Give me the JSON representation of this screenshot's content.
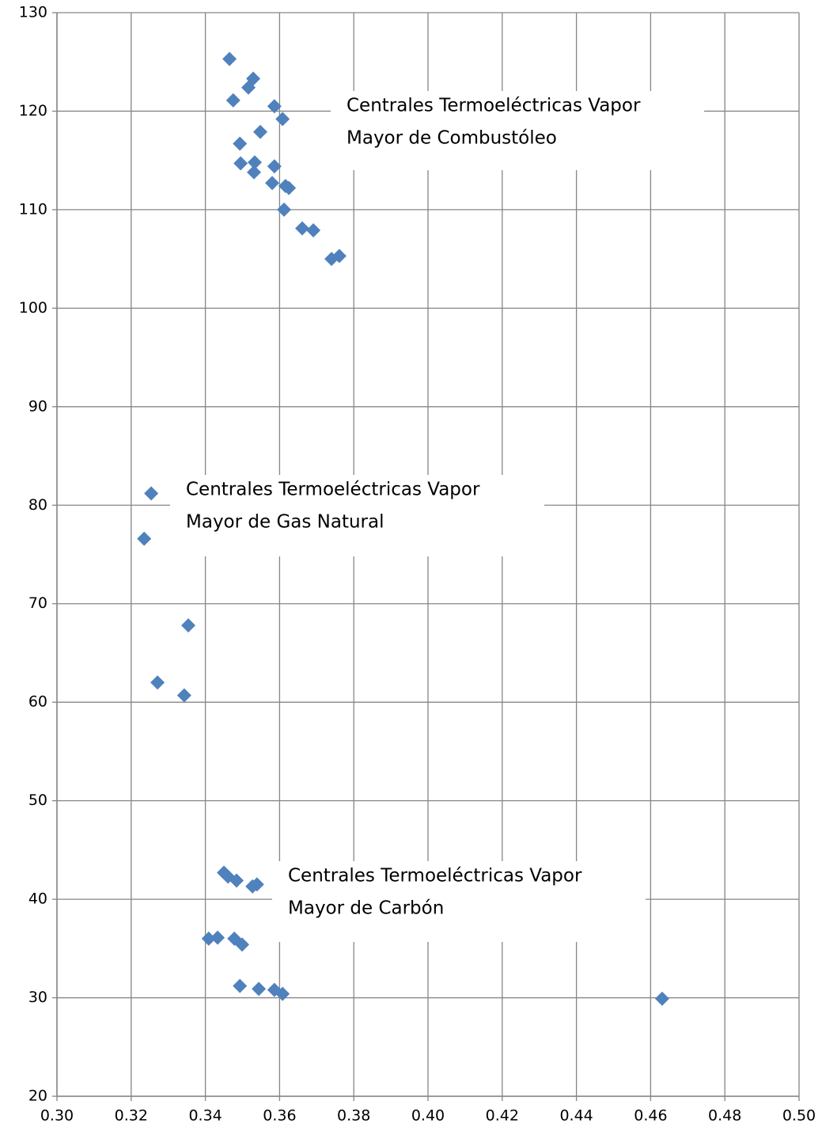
{
  "chart_data": {
    "type": "scatter",
    "xlim": [
      0.3,
      0.5
    ],
    "xticks": [
      {
        "value": 0.3,
        "label": "0.30"
      },
      {
        "value": 0.32,
        "label": "0.32"
      },
      {
        "value": 0.34,
        "label": "0.34"
      },
      {
        "value": 0.36,
        "label": "0.36"
      },
      {
        "value": 0.38,
        "label": "0.38"
      },
      {
        "value": 0.4,
        "label": "0.40"
      },
      {
        "value": 0.42,
        "label": "0.42"
      },
      {
        "value": 0.44,
        "label": "0.44"
      },
      {
        "value": 0.46,
        "label": "0.46"
      },
      {
        "value": 0.48,
        "label": "0.48"
      },
      {
        "value": 0.5,
        "label": "0.50"
      }
    ],
    "ylim": [
      20,
      130
    ],
    "yticks": [
      20,
      30,
      40,
      50,
      60,
      70,
      80,
      90,
      100,
      110,
      120,
      130
    ],
    "grid": true,
    "series": [
      {
        "color": "#4f81bd",
        "x": [
          0.3465,
          0.3529,
          0.3475,
          0.3516,
          0.3586,
          0.3608,
          0.3548,
          0.3493,
          0.3495,
          0.3533,
          0.3531,
          0.3586,
          0.358,
          0.3616,
          0.3625,
          0.3612,
          0.3661,
          0.3691,
          0.374,
          0.3761,
          0.3254,
          0.3235,
          0.3354,
          0.3271,
          0.3343,
          0.345,
          0.3461,
          0.3484,
          0.3527,
          0.3539,
          0.3409,
          0.3433,
          0.3478,
          0.3499,
          0.3493,
          0.3544,
          0.3586,
          0.3608,
          0.4631
        ],
        "values": [
          125.3,
          123.3,
          121.1,
          122.4,
          120.5,
          119.2,
          117.9,
          116.7,
          114.7,
          114.8,
          113.8,
          114.4,
          112.7,
          112.4,
          112.2,
          110.0,
          108.1,
          107.9,
          105.0,
          105.3,
          81.2,
          76.6,
          67.8,
          62.0,
          60.7,
          42.7,
          42.3,
          41.9,
          41.3,
          41.5,
          36.0,
          36.1,
          36.0,
          35.4,
          31.2,
          30.9,
          30.8,
          30.4,
          29.9
        ]
      }
    ],
    "annotations": [
      [
        "Centrales Termoeléctricas Vapor",
        "Mayor de Combustóleo"
      ],
      [
        "Centrales Termoeléctricas Vapor",
        "Mayor de Gas Natural"
      ],
      [
        "Centrales Termoeléctricas Vapor",
        "Mayor de Carbón"
      ]
    ]
  }
}
